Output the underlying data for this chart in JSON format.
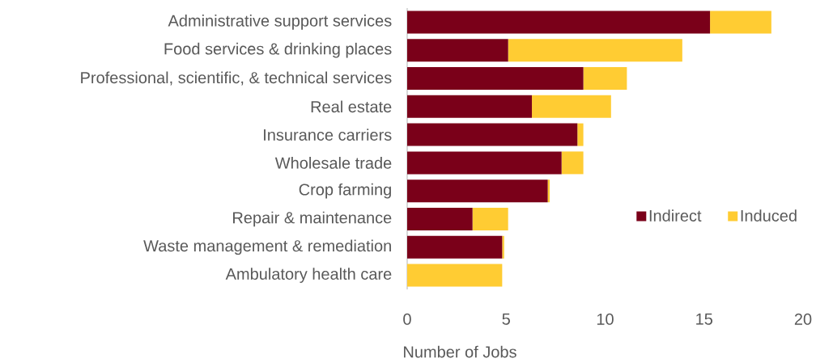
{
  "chart_data": {
    "type": "bar",
    "orientation": "horizontal",
    "stacked": true,
    "xlabel": "Number of Jobs",
    "categories": [
      "Administrative support services",
      "Food services & drinking places",
      "Professional, scientific, & technical services",
      "Real estate",
      "Insurance carriers",
      "Wholesale trade",
      "Crop farming",
      "Repair & maintenance",
      "Waste management & remediation",
      "Ambulatory health care"
    ],
    "series": [
      {
        "name": "Indirect",
        "color": "#7a0019",
        "values": [
          15.3,
          5.1,
          8.9,
          6.3,
          8.6,
          7.8,
          7.1,
          3.3,
          4.8,
          0
        ]
      },
      {
        "name": "Induced",
        "color": "#ffcc33",
        "values": [
          3.1,
          8.8,
          2.2,
          4.0,
          0.3,
          1.1,
          0.1,
          1.8,
          0.1,
          4.8
        ]
      }
    ],
    "xlim": [
      0,
      20
    ],
    "xticks": [
      0,
      5,
      10,
      15,
      20
    ],
    "legend": "right",
    "grid": false
  }
}
